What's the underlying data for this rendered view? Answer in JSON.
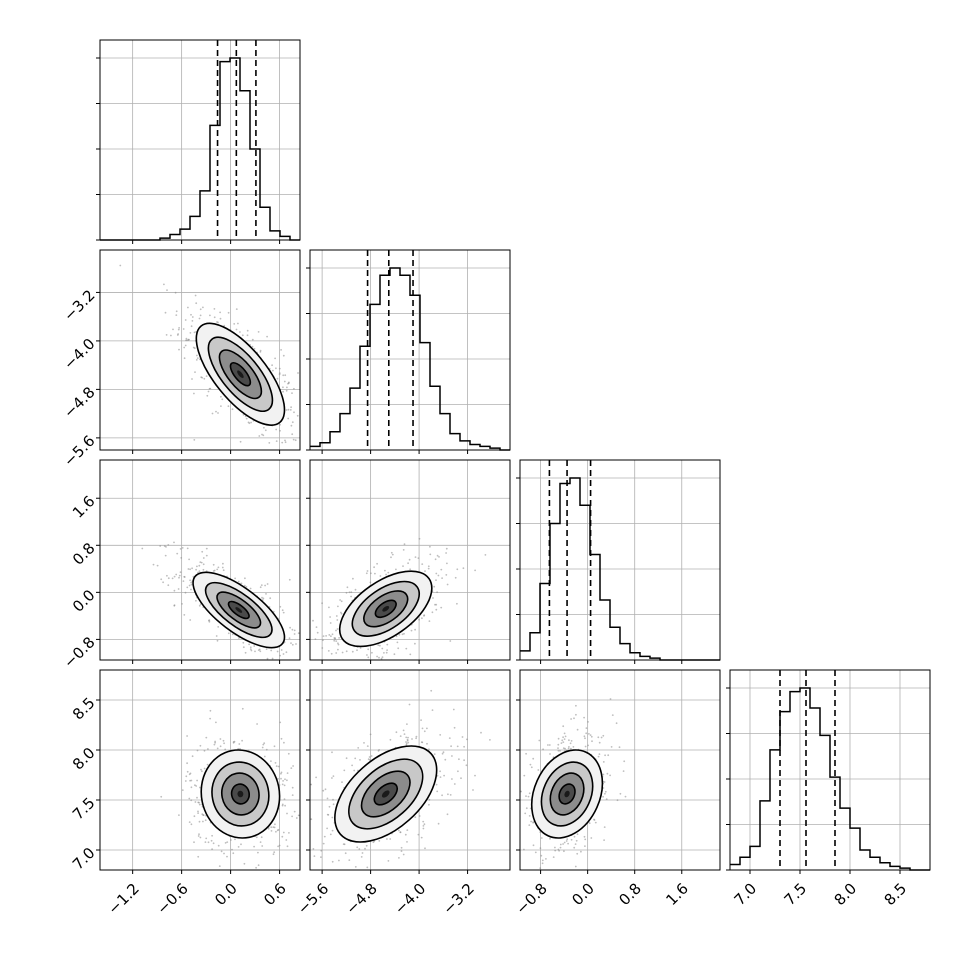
{
  "chart_data": {
    "type": "corner",
    "grid": true,
    "parameters": [
      {
        "range": [
          -1.6,
          0.85
        ],
        "ticks": [
          {
            "value": -1.2,
            "label": "−1.2"
          },
          {
            "value": -0.6,
            "label": "−0.6"
          },
          {
            "value": 0.0,
            "label": "0.0"
          },
          {
            "value": 0.6,
            "label": "0.6"
          }
        ],
        "quantiles": [
          -0.16,
          0.07,
          0.31
        ],
        "histogram": [
          0,
          0,
          0,
          0,
          0,
          0,
          0.01,
          0.03,
          0.06,
          0.13,
          0.27,
          0.63,
          0.98,
          1.0,
          0.82,
          0.5,
          0.18,
          0.05,
          0.02,
          0.0
        ],
        "peak": 0.07,
        "sd_x": 0.23,
        "sd_y": 0.95
      },
      {
        "range": [
          -5.8,
          -2.5
        ],
        "ticks": [
          {
            "value": -5.6,
            "label": "−5.6"
          },
          {
            "value": -4.8,
            "label": "−4.8"
          },
          {
            "value": -4.0,
            "label": "−4.0"
          },
          {
            "value": -3.2,
            "label": "−3.2"
          }
        ],
        "quantiles": [
          -4.85,
          -4.5,
          -4.1
        ],
        "histogram": [
          0.02,
          0.04,
          0.1,
          0.2,
          0.34,
          0.57,
          0.8,
          0.96,
          1.0,
          0.96,
          0.85,
          0.59,
          0.35,
          0.2,
          0.09,
          0.05,
          0.03,
          0.02,
          0.01,
          0.0
        ],
        "peak": -4.5,
        "sd_x": 0.37,
        "sd_y": 0.35
      },
      {
        "range": [
          -1.15,
          2.25
        ],
        "ticks": [
          {
            "value": -0.8,
            "label": "−0.8"
          },
          {
            "value": 0.0,
            "label": "0.0"
          },
          {
            "value": 0.8,
            "label": "0.8"
          },
          {
            "value": 1.6,
            "label": "1.6"
          }
        ],
        "quantiles": [
          -0.65,
          -0.35,
          0.05
        ],
        "histogram": [
          0.05,
          0.15,
          0.42,
          0.75,
          0.97,
          1.0,
          0.85,
          0.58,
          0.33,
          0.18,
          0.09,
          0.04,
          0.02,
          0.01,
          0.0,
          0.0,
          0.0,
          0.0,
          0.0,
          0.0
        ],
        "peak": -0.3,
        "sd_x": 0.28,
        "sd_y": 0.1
      },
      {
        "range": [
          6.8,
          8.8
        ],
        "ticks": [
          {
            "value": 7.0,
            "label": "7.0"
          },
          {
            "value": 7.5,
            "label": "7.5"
          },
          {
            "value": 8.0,
            "label": "8.0"
          },
          {
            "value": 8.5,
            "label": "8.5"
          }
        ],
        "quantiles": [
          7.3,
          7.56,
          7.85
        ],
        "histogram": [
          0.03,
          0.07,
          0.13,
          0.38,
          0.66,
          0.87,
          0.98,
          1.0,
          0.89,
          0.74,
          0.51,
          0.34,
          0.23,
          0.11,
          0.07,
          0.04,
          0.02,
          0.01,
          0.0,
          0.0
        ],
        "peak": 7.54,
        "sd_x": 0.2,
        "sd_y": 0.52
      }
    ],
    "pairs": [
      {
        "row": 1,
        "col": 0,
        "center": [
          0.12,
          -4.55
        ],
        "spread": [
          0.27,
          0.42
        ],
        "corr": -0.7
      },
      {
        "row": 2,
        "col": 0,
        "center": [
          0.1,
          -0.3
        ],
        "spread": [
          0.28,
          0.32
        ],
        "corr": -0.72
      },
      {
        "row": 2,
        "col": 1,
        "center": [
          -4.55,
          -0.28
        ],
        "spread": [
          0.38,
          0.32
        ],
        "corr": 0.55
      },
      {
        "row": 3,
        "col": 0,
        "center": [
          0.12,
          7.56
        ],
        "spread": [
          0.24,
          0.22
        ],
        "corr": -0.05
      },
      {
        "row": 3,
        "col": 1,
        "center": [
          -4.55,
          7.56
        ],
        "spread": [
          0.42,
          0.24
        ],
        "corr": 0.5
      },
      {
        "row": 3,
        "col": 2,
        "center": [
          -0.35,
          7.56
        ],
        "spread": [
          0.3,
          0.22
        ],
        "corr": 0.25
      }
    ]
  }
}
